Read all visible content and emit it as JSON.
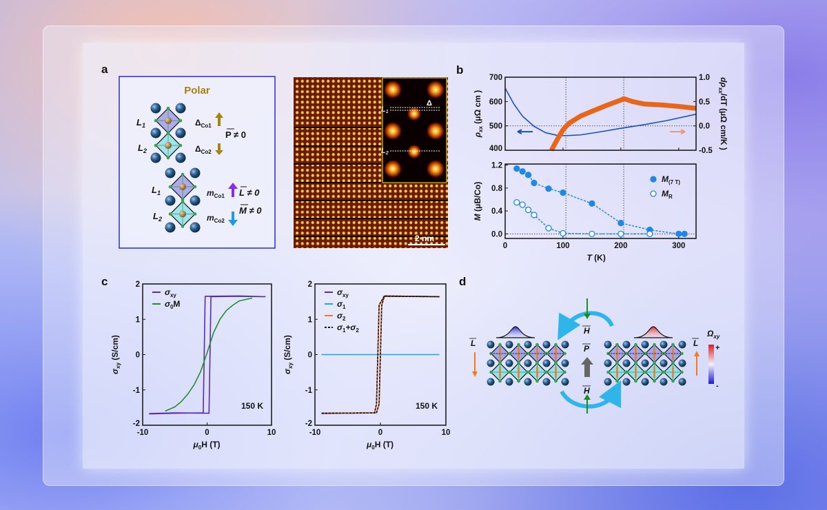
{
  "panels": {
    "a": "a",
    "b": "b",
    "c": "c",
    "d": "d"
  },
  "panel_a": {
    "title": "Polar",
    "L1": {
      "main": "L",
      "sub": "1"
    },
    "L2": {
      "main": "L",
      "sub": "2"
    },
    "delta_co1": {
      "main": "Δ",
      "sub": "Co1"
    },
    "delta_co2": {
      "main": "Δ",
      "sub": "Co2"
    },
    "P_neq": "P ≠ 0",
    "m_co1": {
      "main": "m",
      "sub": "Co1"
    },
    "m_co2": {
      "main": "m",
      "sub": "Co2"
    },
    "L_neq": "L ≠ 0",
    "M_neq": "M ≠ 0",
    "inset_delta": "Δ",
    "scale_bar": "2 nm",
    "colors": {
      "polar": "#a8820f",
      "delta_arrow": "#a8820f",
      "m_co1_arrow": "#8a2be2",
      "m_co2_arrow": "#1e9be8",
      "box_border": "#2a2ad8"
    }
  },
  "panel_d": {
    "L": "L",
    "H": "H",
    "P": "P",
    "omega": {
      "main": "Ω",
      "sub": "xy"
    },
    "plus": "+",
    "minus": "-",
    "colors": {
      "curved_arrow": "#2eb6ec",
      "field_arrow": "#1e8a1e",
      "L_arrow": "#f07a1e",
      "P_arrow": "#666666",
      "berry_pos": "#e03030",
      "berry_neg": "#3030e0"
    }
  },
  "chart_data": [
    {
      "id": "b-top",
      "type": "line",
      "xlim": [
        0,
        330
      ],
      "ylim": [
        400,
        700
      ],
      "y2lim": [
        -0.5,
        1.0
      ],
      "ylabel": {
        "main": "ρ",
        "sub": "xx",
        "rest": " (μΩ cm )"
      },
      "y2label": {
        "main": "dρ",
        "sub": "xx",
        "rest": "/dT (μΩ cm/K )"
      },
      "yticks": [
        400,
        500,
        600,
        700
      ],
      "y2ticks": [
        -0.5,
        0.0,
        0.5,
        1.0
      ],
      "y2ticklabels": [
        "-0.5",
        "0.0",
        "0.5",
        "1.0"
      ],
      "xticks": [
        0,
        100,
        200,
        300
      ],
      "grid": false,
      "reference_lines": {
        "x": [
          105,
          205
        ],
        "y": [
          500
        ]
      },
      "series": [
        {
          "axis": "left",
          "color": "#1a4fc0",
          "points": [
            [
              0,
              655
            ],
            [
              15,
              590
            ],
            [
              30,
              540
            ],
            [
              50,
              498
            ],
            [
              70,
              472
            ],
            [
              90,
              461
            ],
            [
              105,
              460
            ],
            [
              130,
              463
            ],
            [
              160,
              474
            ],
            [
              200,
              490
            ],
            [
              240,
              505
            ],
            [
              280,
              522
            ],
            [
              330,
              548
            ]
          ]
        },
        {
          "axis": "right",
          "color": "#e8661a",
          "points": [
            [
              80,
              -0.5
            ],
            [
              90,
              -0.28
            ],
            [
              100,
              -0.08
            ],
            [
              110,
              0.05
            ],
            [
              130,
              0.2
            ],
            [
              150,
              0.3
            ],
            [
              175,
              0.42
            ],
            [
              200,
              0.53
            ],
            [
              205,
              0.56
            ],
            [
              220,
              0.5
            ],
            [
              240,
              0.45
            ],
            [
              270,
              0.43
            ],
            [
              300,
              0.4
            ],
            [
              330,
              0.36
            ]
          ]
        }
      ]
    },
    {
      "id": "b-bottom",
      "type": "scatter",
      "xlim": [
        0,
        330
      ],
      "ylim": [
        -0.08,
        1.22
      ],
      "xlabel": {
        "main": "T",
        "rest": " (K)"
      },
      "ylabel": {
        "main": "M",
        "rest": " (μB/Co)"
      },
      "xticks": [
        0,
        100,
        200,
        300
      ],
      "yticks": [
        0,
        0.4,
        0.8,
        1.2
      ],
      "yticklabels": [
        "0.0",
        "0.4",
        "0.8",
        "1.2"
      ],
      "reference_lines": {
        "x": [
          105,
          205
        ],
        "y": [
          0
        ]
      },
      "legend": "top-right",
      "series": [
        {
          "name": {
            "main": "M",
            "sub": "(7 T)"
          },
          "filled": true,
          "color": "#1e88e5",
          "points": [
            [
              20,
              1.14
            ],
            [
              30,
              1.09
            ],
            [
              40,
              1.03
            ],
            [
              50,
              0.89
            ],
            [
              75,
              0.79
            ],
            [
              100,
              0.72
            ],
            [
              150,
              0.53
            ],
            [
              200,
              0.19
            ],
            [
              250,
              0.07
            ],
            [
              300,
              0.0
            ],
            [
              310,
              0.0
            ]
          ]
        },
        {
          "name": {
            "main": "M",
            "sub": "R"
          },
          "filled": false,
          "color": "#1e88e5",
          "points": [
            [
              20,
              0.55
            ],
            [
              30,
              0.51
            ],
            [
              40,
              0.42
            ],
            [
              50,
              0.33
            ],
            [
              75,
              0.1
            ],
            [
              100,
              0.01
            ],
            [
              150,
              0.0
            ],
            [
              200,
              0.0
            ],
            [
              250,
              0.0
            ]
          ]
        }
      ]
    },
    {
      "id": "c-left",
      "type": "line",
      "xlim": [
        -10,
        10
      ],
      "ylim": [
        -2,
        2
      ],
      "xlabel": {
        "main": "μ",
        "sub": "0",
        "rest": "H (T)"
      },
      "ylabel": {
        "main": "σ",
        "sub": "xy",
        "rest": " (S/cm)"
      },
      "xticks": [
        -10,
        0,
        10
      ],
      "yticks": [
        -2,
        -1,
        0,
        1,
        2
      ],
      "annotation": "150 K",
      "legend": "top-left",
      "series": [
        {
          "name": {
            "main": "σ",
            "sub": "xy"
          },
          "color": "#5b2aa8",
          "points": [
            [
              -9,
              -1.67
            ],
            [
              -5,
              -1.65
            ],
            [
              0.3,
              -1.66
            ],
            [
              0.6,
              1.64
            ],
            [
              5,
              1.65
            ],
            [
              9,
              1.64
            ],
            [
              5,
              1.66
            ],
            [
              -0.3,
              1.65
            ],
            [
              -0.6,
              -1.65
            ],
            [
              -5,
              -1.66
            ],
            [
              -9,
              -1.68
            ]
          ]
        },
        {
          "name": {
            "main": "σ",
            "sub": "0",
            "rest": "M"
          },
          "color": "#1f8f2a",
          "points": [
            [
              -6.5,
              -1.6
            ],
            [
              -5,
              -1.48
            ],
            [
              -4,
              -1.33
            ],
            [
              -3,
              -1.12
            ],
            [
              -2,
              -0.85
            ],
            [
              -1,
              -0.48
            ],
            [
              0,
              0.05
            ],
            [
              1,
              0.62
            ],
            [
              2,
              1.0
            ],
            [
              3,
              1.25
            ],
            [
              4,
              1.4
            ],
            [
              5,
              1.52
            ],
            [
              7,
              1.6
            ]
          ]
        }
      ]
    },
    {
      "id": "c-right",
      "type": "line",
      "xlim": [
        -10,
        10
      ],
      "ylim": [
        -2,
        2
      ],
      "xlabel": {
        "main": "μ",
        "sub": "0",
        "rest": "H (T)"
      },
      "ylabel": {
        "main": "σ",
        "sub": "xy",
        "rest": " (S/cm)"
      },
      "xticks": [
        -10,
        0,
        10
      ],
      "yticks": [
        -2,
        -1,
        0,
        1,
        2
      ],
      "annotation": "150 K",
      "legend": "top-left",
      "series": [
        {
          "name": {
            "main": "σ",
            "sub": "xy"
          },
          "color": "#5b2aa8",
          "points": [
            [
              -9,
              -1.67
            ],
            [
              -0.6,
              -1.65
            ],
            [
              -0.2,
              -1.4
            ],
            [
              0.2,
              1.4
            ],
            [
              0.6,
              1.65
            ],
            [
              9,
              1.64
            ],
            [
              0.6,
              1.66
            ],
            [
              -0.2,
              1.4
            ],
            [
              -0.6,
              -1.4
            ],
            [
              -0.9,
              -1.65
            ],
            [
              -9,
              -1.66
            ]
          ]
        },
        {
          "name": {
            "main": "σ",
            "sub": "1"
          },
          "color": "#1aa8e0",
          "points": [
            [
              -9,
              0
            ],
            [
              9,
              0
            ]
          ]
        },
        {
          "name": {
            "main": "σ",
            "sub": "2"
          },
          "color": "#f07a1e",
          "points": [
            [
              -9,
              -1.66
            ],
            [
              -0.6,
              -1.65
            ],
            [
              -0.2,
              -1.4
            ],
            [
              0.2,
              1.4
            ],
            [
              0.6,
              1.65
            ],
            [
              9,
              1.64
            ],
            [
              0.6,
              1.66
            ],
            [
              -0.2,
              1.4
            ],
            [
              -0.6,
              -1.4
            ],
            [
              -0.9,
              -1.65
            ],
            [
              -9,
              -1.66
            ]
          ]
        },
        {
          "name": {
            "main": "σ",
            "sub": "1",
            "rest": "+σ",
            "sub2": "2"
          },
          "color": "#111111",
          "dashed": true,
          "points": [
            [
              -9,
              -1.66
            ],
            [
              -0.6,
              -1.65
            ],
            [
              -0.2,
              -1.4
            ],
            [
              0.2,
              1.4
            ],
            [
              0.6,
              1.65
            ],
            [
              9,
              1.64
            ],
            [
              0.6,
              1.66
            ],
            [
              -0.2,
              1.4
            ],
            [
              -0.6,
              -1.4
            ],
            [
              -0.9,
              -1.65
            ],
            [
              -9,
              -1.66
            ]
          ]
        }
      ]
    }
  ]
}
